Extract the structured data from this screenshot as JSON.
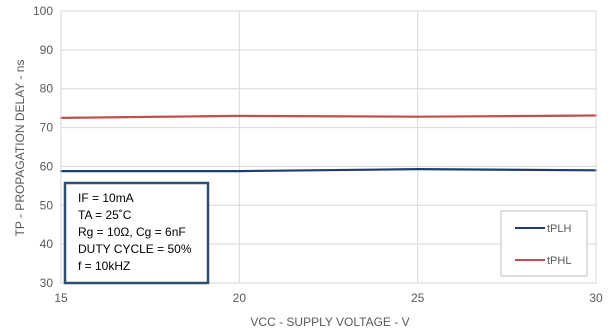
{
  "chart_data": {
    "type": "line",
    "title": "",
    "xlabel": "VCC - SUPPLY VOLTAGE - V",
    "ylabel": "TP - PROPAGATION DELAY - ns",
    "xlim": [
      15,
      30
    ],
    "ylim": [
      30,
      100
    ],
    "x_ticks": [
      "15",
      "20",
      "25",
      "30"
    ],
    "y_ticks": [
      "30",
      "40",
      "50",
      "60",
      "70",
      "80",
      "90",
      "100"
    ],
    "grid": true,
    "legend_position": "bottom-right",
    "series": [
      {
        "name": "tPLH",
        "color": "#1f3d6e",
        "x": [
          15,
          20,
          25,
          30
        ],
        "y": [
          58.8,
          58.8,
          59.3,
          59.0
        ]
      },
      {
        "name": "tPHL",
        "color": "#c0504d",
        "x": [
          15,
          20,
          25,
          30
        ],
        "y": [
          72.5,
          73.0,
          72.8,
          73.1
        ]
      }
    ],
    "annotation": {
      "border_color": "#2f4f6f",
      "lines": [
        "IF = 10mA",
        "TA = 25˚C",
        "Rg = 10Ω, Cg = 6nF",
        "DUTY CYCLE = 50%",
        "f = 10kHZ"
      ]
    }
  }
}
